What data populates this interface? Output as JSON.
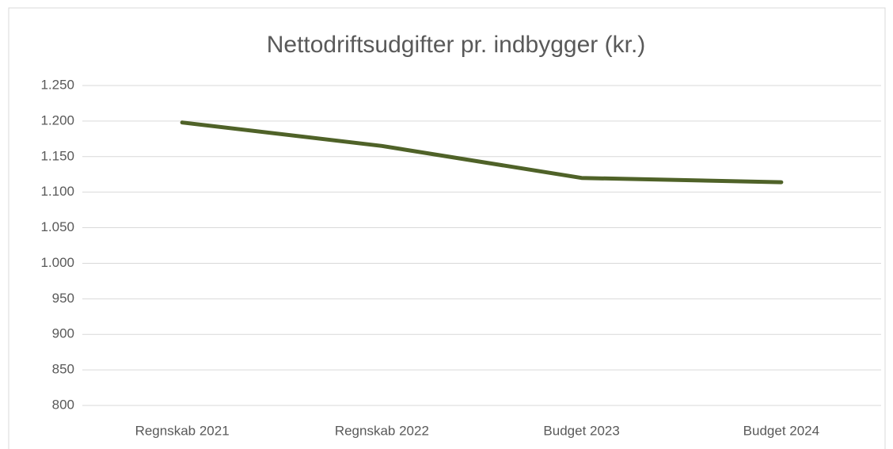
{
  "chart_data": {
    "type": "line",
    "title": "Nettodriftsudgifter pr. indbygger (kr.)",
    "categories": [
      "Regnskab 2021",
      "Regnskab 2022",
      "Budget 2023",
      "Budget 2024"
    ],
    "series": [
      {
        "name": "Nettodriftsudgifter pr. indbygger",
        "color": "#4f6228",
        "values": [
          1198,
          1165,
          1120,
          1114
        ]
      }
    ],
    "ylim": [
      800,
      1250
    ],
    "yticks": [
      800,
      850,
      900,
      950,
      {
        "value": 1000,
        "label": "1.000"
      },
      {
        "value": 1050,
        "label": "1.050"
      },
      {
        "value": 1100,
        "label": "1.100"
      },
      {
        "value": 1150,
        "label": "1.150"
      },
      {
        "value": 1200,
        "label": "1.200"
      },
      {
        "value": 1250,
        "label": "1.250"
      }
    ],
    "grid": true
  }
}
